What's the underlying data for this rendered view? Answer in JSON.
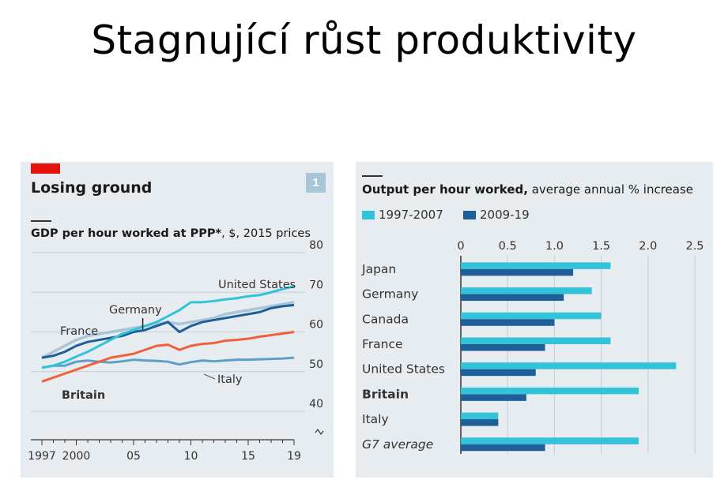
{
  "slide": {
    "title": "Stagnující růst produktivity"
  },
  "left_chart": {
    "badge_color": "#e3120b",
    "title": "Losing ground",
    "number": "1",
    "number_bg": "#a9c6d9",
    "subtitle_bold": "GDP per hour worked at PPP*",
    "subtitle_rest": ", $, 2015 prices"
  },
  "right_chart": {
    "subtitle_bold": "Output per hour worked,",
    "subtitle_rest": " average annual % increase"
  },
  "chart_data": [
    {
      "type": "line",
      "title": "Losing ground",
      "subtitle": "GDP per hour worked at PPP*, $, 2015 prices",
      "x_tick_labels": [
        "1997",
        "2000",
        "05",
        "10",
        "15",
        "19"
      ],
      "x_ticks": [
        1997,
        2000,
        2005,
        2010,
        2015,
        2019
      ],
      "xlim": [
        1997,
        2019
      ],
      "y_tick_labels": [
        "40",
        "50",
        "60",
        "70",
        "80"
      ],
      "y_ticks": [
        40,
        50,
        60,
        70,
        80
      ],
      "ylim": [
        40,
        80
      ],
      "broken_axis": true,
      "grid": "horizontal",
      "x": [
        1997,
        1998,
        1999,
        2000,
        2001,
        2002,
        2003,
        2004,
        2005,
        2006,
        2007,
        2008,
        2009,
        2010,
        2011,
        2012,
        2013,
        2014,
        2015,
        2016,
        2017,
        2018,
        2019
      ],
      "series": [
        {
          "name": "United States",
          "color": "#33c3d8",
          "values": [
            51,
            51.5,
            52.5,
            53.8,
            55,
            56.5,
            58,
            59.5,
            60.5,
            61.5,
            62.5,
            64,
            65.5,
            67.5,
            67.5,
            67.8,
            68.2,
            68.5,
            69,
            69.3,
            70,
            70.8,
            71.5
          ]
        },
        {
          "name": "Germany",
          "color": "#1f5f99",
          "values": [
            53.5,
            54,
            55,
            56.5,
            57.5,
            58,
            58.5,
            59,
            60,
            60.5,
            61.5,
            62.5,
            60,
            61.5,
            62.5,
            63,
            63.5,
            64,
            64.5,
            65,
            66,
            66.5,
            66.8
          ]
        },
        {
          "name": "France",
          "color": "#a9c6d9",
          "values": [
            53.5,
            55,
            56.5,
            58,
            59,
            59.5,
            60,
            60.5,
            61,
            61.5,
            62,
            62.5,
            62,
            62.5,
            63,
            63.5,
            64.5,
            65,
            65.5,
            66,
            66.5,
            67,
            67.5
          ]
        },
        {
          "name": "Britain",
          "color": "#f0603a",
          "values": [
            47.5,
            48.5,
            49.5,
            50.5,
            51.5,
            52.5,
            53.5,
            54,
            54.5,
            55.5,
            56.5,
            56.8,
            55.5,
            56.5,
            57,
            57.2,
            57.8,
            58,
            58.3,
            58.8,
            59.2,
            59.6,
            60
          ]
        },
        {
          "name": "Italy",
          "color": "#5e9ec8",
          "values": [
            51,
            51.5,
            51.5,
            52.5,
            52.8,
            52.5,
            52.3,
            52.6,
            53,
            52.8,
            52.7,
            52.5,
            51.8,
            52.4,
            52.8,
            52.6,
            52.8,
            53,
            53,
            53.1,
            53.2,
            53.3,
            53.5
          ]
        }
      ],
      "annotations": [
        "United States",
        "Germany",
        "France",
        "Britain",
        "Italy"
      ]
    },
    {
      "type": "bar",
      "orientation": "horizontal",
      "subtitle": "Output per hour worked, average annual % increase",
      "categories": [
        "Japan",
        "Germany",
        "Canada",
        "France",
        "United States",
        "Britain",
        "Italy",
        "G7 average"
      ],
      "category_styles": [
        "normal",
        "normal",
        "normal",
        "normal",
        "normal",
        "bold",
        "normal",
        "italic"
      ],
      "x_tick_labels": [
        "0",
        "0.5",
        "1.0",
        "1.5",
        "2.0",
        "2.5"
      ],
      "x_ticks": [
        0,
        0.5,
        1.0,
        1.5,
        2.0,
        2.5
      ],
      "xlim": [
        0,
        2.5
      ],
      "grid": "vertical",
      "legend_position": "top-left",
      "series": [
        {
          "name": "1997-2007",
          "color": "#33c3d8",
          "values": [
            1.6,
            1.4,
            1.5,
            1.6,
            2.3,
            1.9,
            0.4,
            1.9
          ]
        },
        {
          "name": "2009-19",
          "color": "#1f5f99",
          "values": [
            1.2,
            1.1,
            1.0,
            0.9,
            0.8,
            0.7,
            0.4,
            0.9
          ]
        }
      ]
    }
  ]
}
